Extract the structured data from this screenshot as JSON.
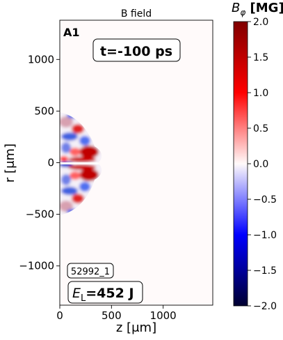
{
  "chart_data": {
    "type": "heatmap",
    "title": "B field",
    "panel_label": "A1",
    "time_label": "t=-100 ps",
    "shot_id": "52992_1",
    "energy_label": {
      "symbol": "E",
      "subscript": "L",
      "value": "=452 J"
    },
    "xlabel": "z [μm]",
    "ylabel": "r [μm]",
    "xlim": [
      0,
      1480
    ],
    "ylim": [
      -1380,
      1380
    ],
    "xticks": [
      0,
      500,
      1000
    ],
    "xtick_labels": [
      "0",
      "500",
      "1000"
    ],
    "yticks": [
      -1000,
      -500,
      0,
      500,
      1000
    ],
    "ytick_labels": [
      "−1000",
      "−500",
      "0",
      "500",
      "1000"
    ],
    "colorbar": {
      "label": {
        "symbol": "B",
        "subscript": "φ",
        "unit": " [MG]"
      },
      "min": -2.0,
      "max": 2.0,
      "colormap": "seismic",
      "ticks": [
        2.0,
        1.5,
        1.0,
        0.5,
        0.0,
        -0.5,
        -1.0,
        -1.5,
        -2.0
      ],
      "tick_labels": [
        "2.0",
        "1.5",
        "1.0",
        "0.5",
        "0.0",
        "−0.5",
        "−1.0",
        "−1.5",
        "−2.0"
      ]
    },
    "field_region": {
      "description": "plasma plume near target surface",
      "z_extent": [
        0,
        400
      ],
      "r_extent": [
        -500,
        500
      ],
      "peak_value": 2.0
    }
  }
}
